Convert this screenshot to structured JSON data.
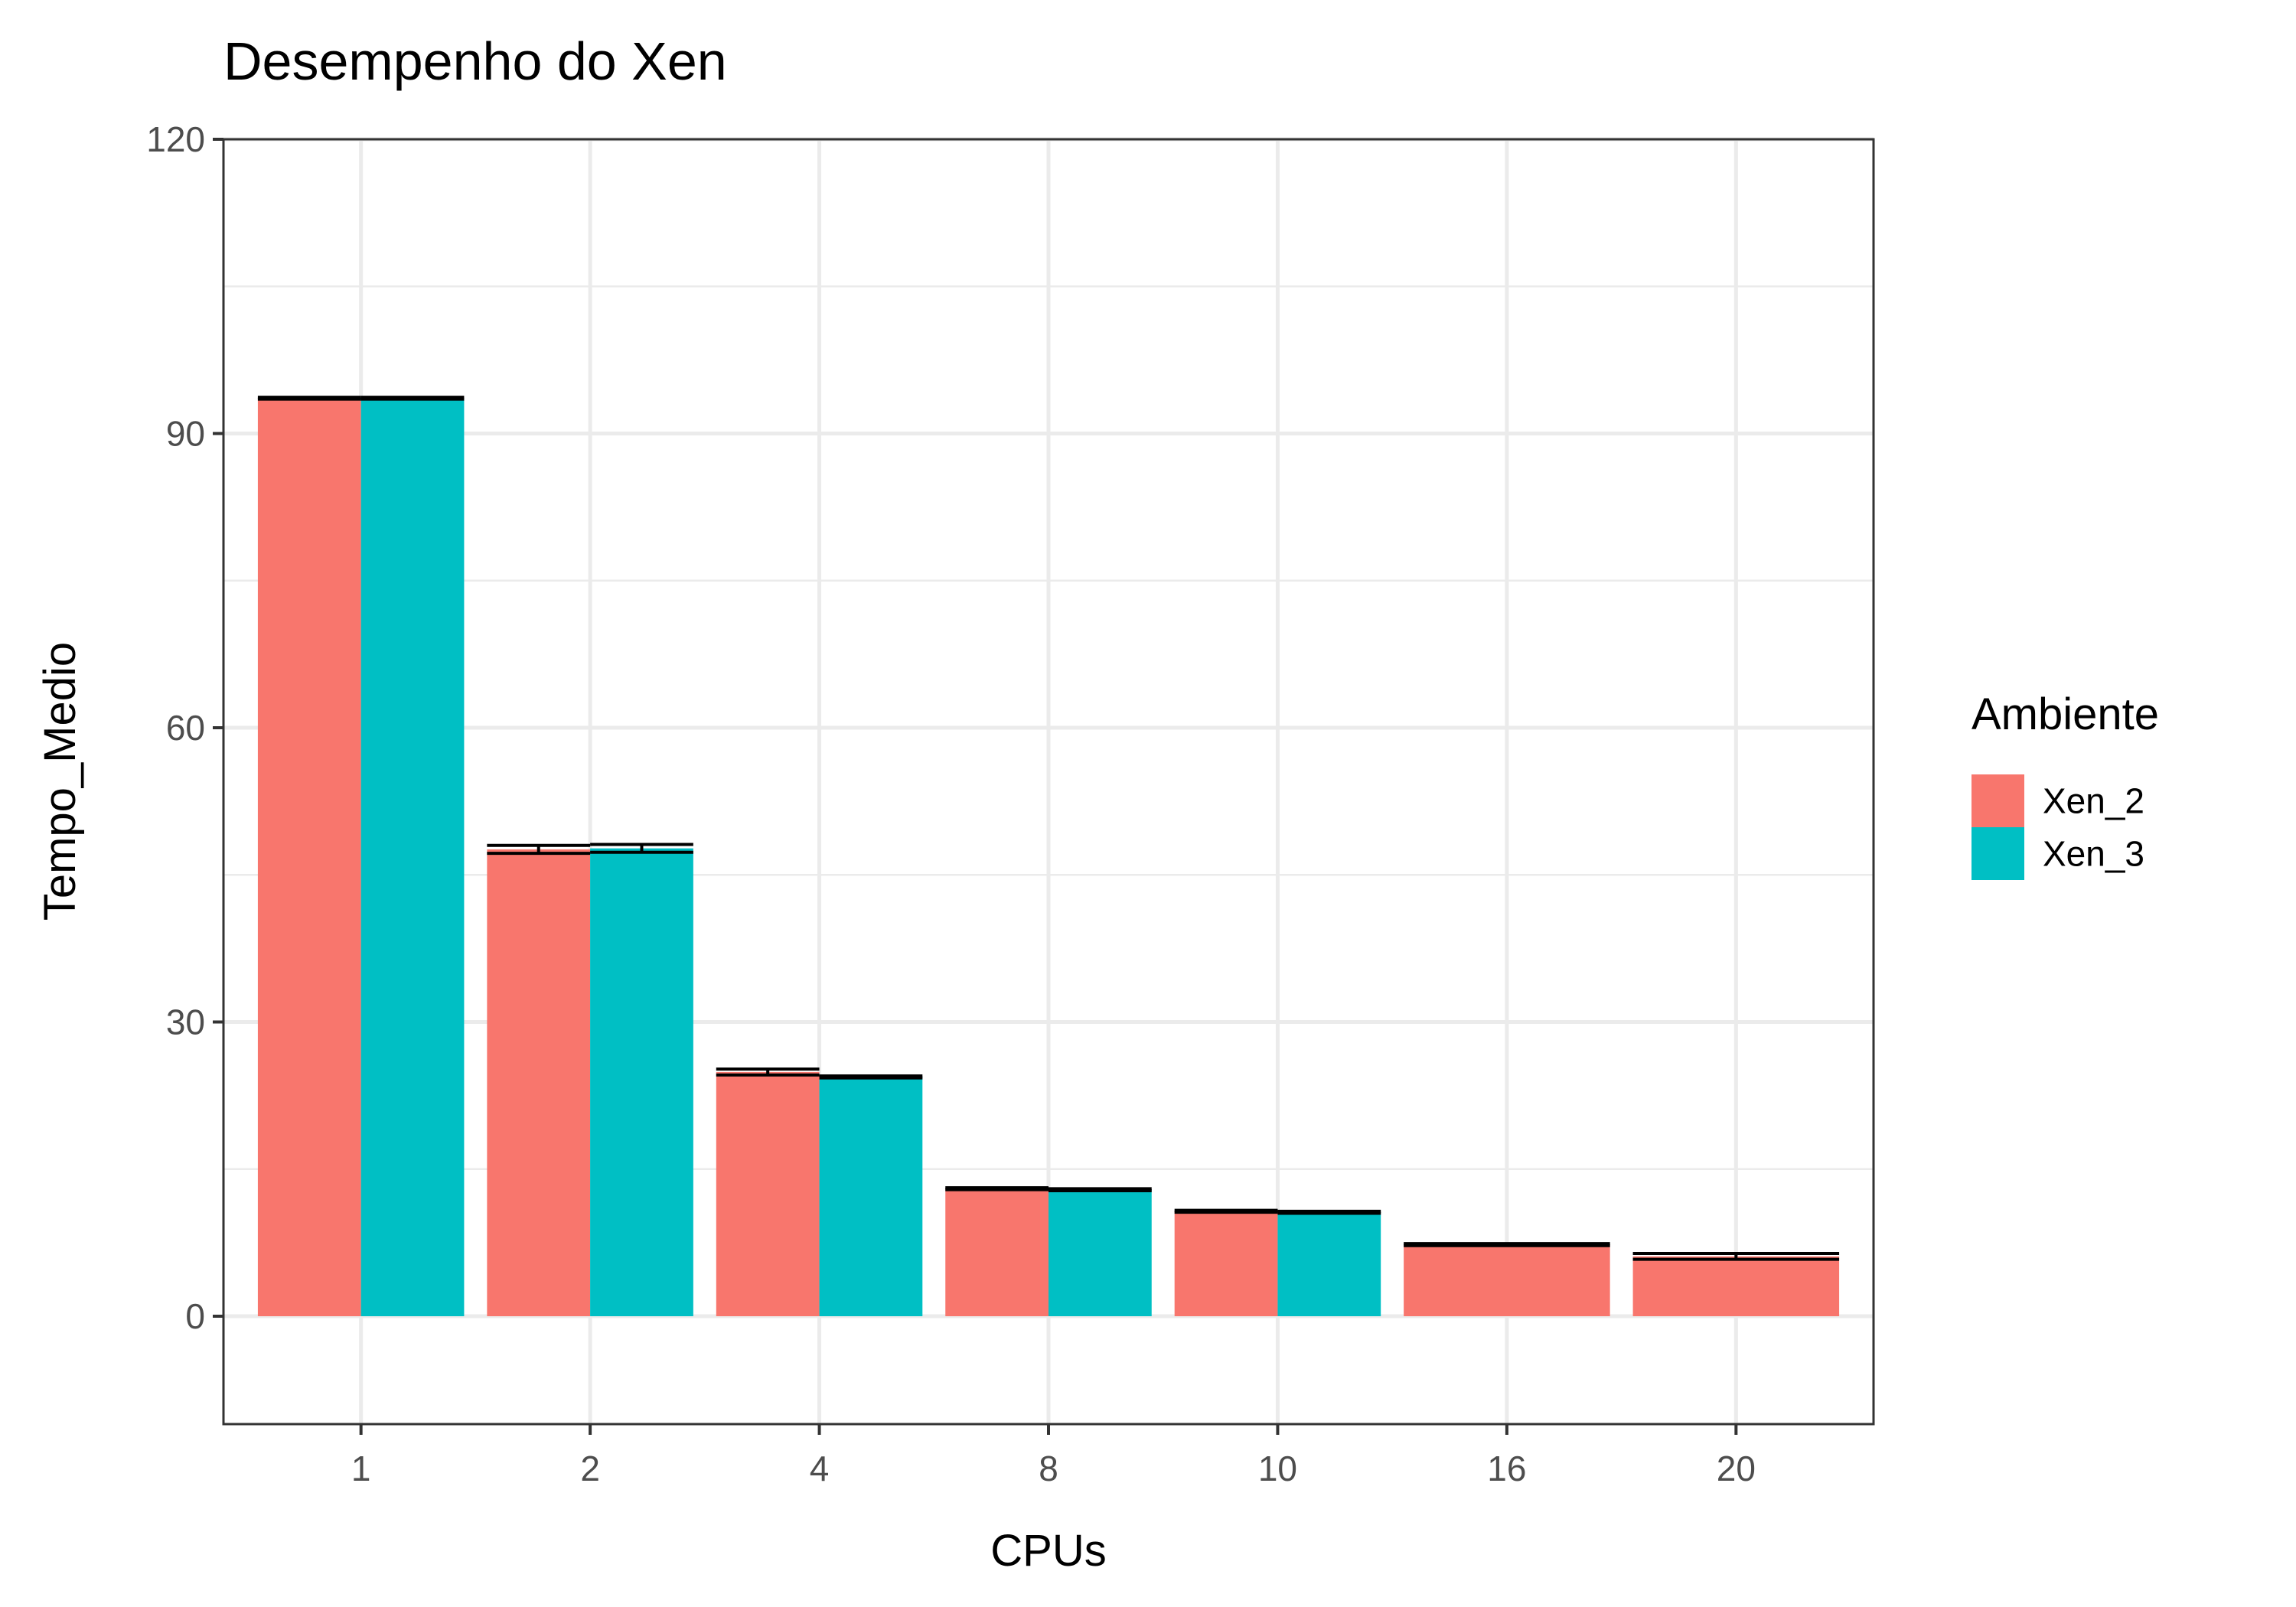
{
  "chart_data": {
    "type": "bar",
    "title": "Desempenho do Xen",
    "xlabel": "CPUs",
    "ylabel": "Tempo_Medio",
    "categories": [
      "1",
      "2",
      "4",
      "8",
      "10",
      "16",
      "20"
    ],
    "ylim": [
      -11,
      120
    ],
    "yticks": [
      0,
      30,
      60,
      90,
      120
    ],
    "grid": true,
    "legend": {
      "title": "Ambiente",
      "position": "right"
    },
    "series": [
      {
        "name": "Xen_2",
        "color": "#F8766D",
        "values": [
          93.6,
          47.6,
          24.9,
          13.0,
          10.7,
          7.3,
          6.1
        ],
        "error": [
          0.1,
          0.4,
          0.3,
          0.1,
          0.1,
          0.1,
          0.3
        ]
      },
      {
        "name": "Xen_3",
        "color": "#00BFC4",
        "values": [
          93.6,
          47.7,
          24.4,
          12.9,
          10.6,
          null,
          null
        ],
        "error": [
          0.1,
          0.4,
          0.1,
          0.1,
          0.1,
          null,
          null
        ]
      }
    ],
    "error_bar_color": "#000000"
  }
}
